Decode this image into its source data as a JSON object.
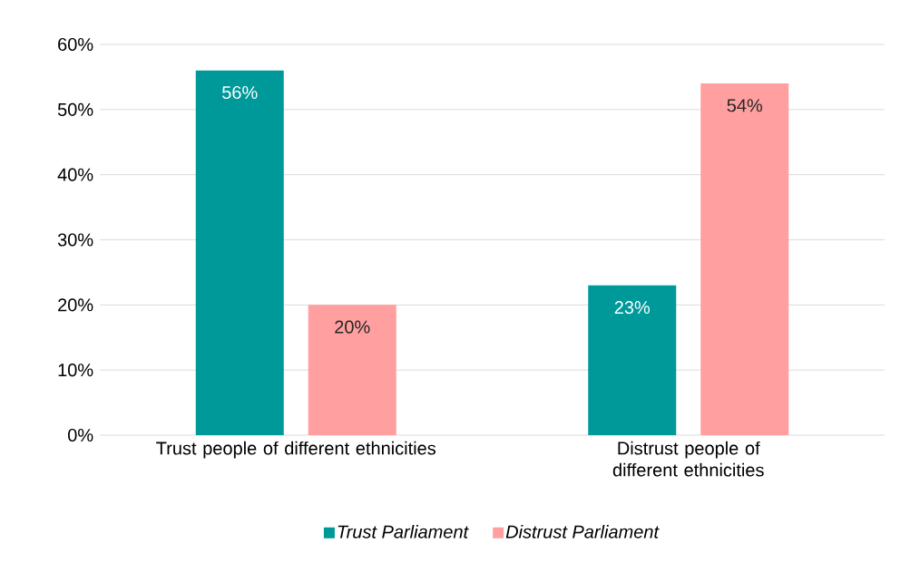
{
  "chart_data": {
    "type": "bar",
    "categories": [
      "Trust people of different ethnicities",
      "Distrust people of different ethnicities"
    ],
    "series": [
      {
        "name": "Trust Parliament",
        "color": "#009999",
        "values": [
          56,
          23
        ],
        "value_labels": [
          "56%",
          "23%"
        ]
      },
      {
        "name": "Distrust Parliament",
        "color": "#ff9f9f",
        "values": [
          20,
          54
        ],
        "value_labels": [
          "20%",
          "54%"
        ]
      }
    ],
    "ylim": [
      0,
      60
    ],
    "yticks": [
      {
        "value": 0,
        "label": "0%"
      },
      {
        "value": 10,
        "label": "10%"
      },
      {
        "value": 20,
        "label": "20%"
      },
      {
        "value": 30,
        "label": "30%"
      },
      {
        "value": 40,
        "label": "40%"
      },
      {
        "value": 50,
        "label": "50%"
      },
      {
        "value": 60,
        "label": "60%"
      }
    ],
    "grid": "y",
    "legend": "bottom"
  }
}
